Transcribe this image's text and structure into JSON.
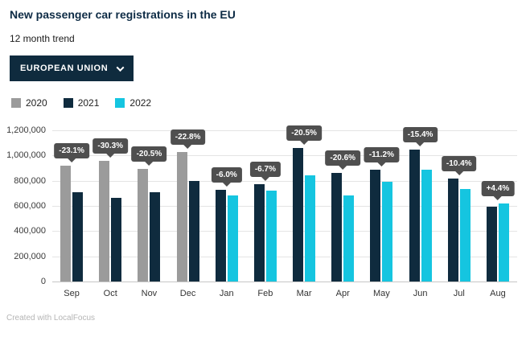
{
  "header": {
    "title": "New passenger car registrations in the EU",
    "subtitle": "12 month trend"
  },
  "filter": {
    "label": "EUROPEAN UNION"
  },
  "legend": [
    {
      "label": "2020",
      "color": "#9b9b9b"
    },
    {
      "label": "2021",
      "color": "#0f2b3e"
    },
    {
      "label": "2022",
      "color": "#15c5e0"
    }
  ],
  "footer": {
    "credit": "Created with LocalFocus"
  },
  "colors": {
    "accent_navy": "#0f2b3e",
    "accent_cyan": "#15c5e0",
    "badge_bg": "#4f4f4f"
  },
  "chart_data": {
    "type": "bar",
    "title": "New passenger car registrations in the EU",
    "subtitle": "12 month trend",
    "categories": [
      "Sep",
      "Oct",
      "Nov",
      "Dec",
      "Jan",
      "Feb",
      "Mar",
      "Apr",
      "May",
      "Jun",
      "Jul",
      "Aug"
    ],
    "series": [
      {
        "name": "2020",
        "color": "#9b9b9b",
        "values": [
          920000,
          955000,
          895000,
          1030000,
          null,
          null,
          null,
          null,
          null,
          null,
          null,
          null
        ]
      },
      {
        "name": "2021",
        "color": "#0f2b3e",
        "values": [
          710000,
          665000,
          710000,
          795000,
          725000,
          770000,
          1060000,
          860000,
          890000,
          1045000,
          820000,
          595000
        ]
      },
      {
        "name": "2022",
        "color": "#15c5e0",
        "values": [
          null,
          null,
          null,
          null,
          680000,
          720000,
          845000,
          685000,
          790000,
          885000,
          735000,
          620000
        ]
      }
    ],
    "point_labels": [
      "-23.1%",
      "-30.3%",
      "-20.5%",
      "-22.8%",
      "-6.0%",
      "-6.7%",
      "-20.5%",
      "-20.6%",
      "-11.2%",
      "-15.4%",
      "-10.4%",
      "+4.4%"
    ],
    "ylim": [
      0,
      1200000
    ],
    "yticks": [
      0,
      200000,
      400000,
      600000,
      800000,
      1000000,
      1200000
    ],
    "ytick_labels": [
      "0",
      "200,000",
      "400,000",
      "600,000",
      "800,000",
      "1,000,000",
      "1,200,000"
    ],
    "xlabel": "",
    "ylabel": "",
    "grid": true,
    "legend_position": "top-left"
  }
}
